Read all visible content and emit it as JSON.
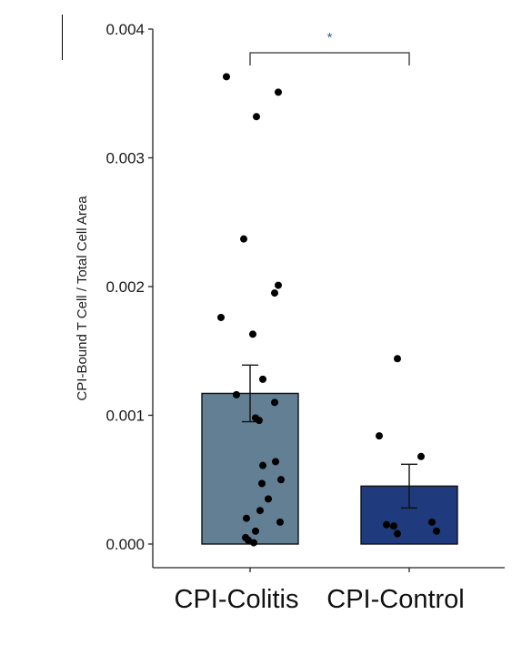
{
  "chart_data": {
    "type": "bar",
    "title": "",
    "xlabel": "",
    "ylabel": "CPI-Bound T Cell / Total Cell Area",
    "ylim": [
      0,
      0.004
    ],
    "yticks": [
      "0.000",
      "0.001",
      "0.002",
      "0.003",
      "0.004"
    ],
    "categories": [
      "CPI-Colitis",
      "CPI-Control"
    ],
    "values": [
      0.00117,
      0.00045
    ],
    "errors": [
      0.00022,
      0.00017
    ],
    "bar_colors": [
      "#637f94",
      "#1f3b7d"
    ],
    "significance": {
      "label": "*",
      "between": [
        "CPI-Colitis",
        "CPI-Control"
      ]
    },
    "points": [
      [
        0.00363,
        0.00351,
        0.00332,
        0.00237,
        0.00201,
        0.00195,
        0.00176,
        0.00163,
        0.00128,
        0.00116,
        0.0011,
        0.00098,
        0.00096,
        0.00064,
        0.00061,
        0.0005,
        0.00047,
        0.00035,
        0.00026,
        0.0002,
        0.00017,
        0.0001,
        5e-05,
        3e-05,
        1e-05
      ],
      [
        0.00144,
        0.00084,
        0.00068,
        0.00017,
        0.00015,
        0.00014,
        0.0001,
        8e-05
      ]
    ]
  }
}
